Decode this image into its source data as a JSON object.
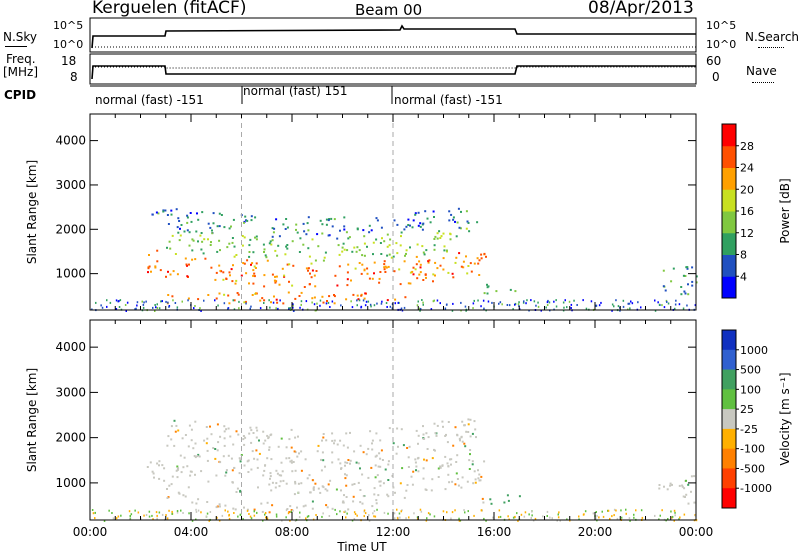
{
  "header": {
    "station": "Kerguelen (fitACF)",
    "beam": "Beam 00",
    "date": "08/Apr/2013"
  },
  "panels": {
    "nsky": {
      "label": "N.Sky",
      "ticks": [
        "10^5",
        "10^0"
      ]
    },
    "nsearch": {
      "label": "N.Search",
      "ticks": [
        "10^5",
        "10^0"
      ]
    },
    "freq": {
      "label1": "Freq.",
      "label2": "[MHz]",
      "ticks": [
        "18",
        "8"
      ]
    },
    "nave": {
      "label": "Nave",
      "ticks": [
        "60",
        "0"
      ]
    },
    "cpid": {
      "label": "CPID",
      "segments": [
        {
          "name": "normal (fast) -151",
          "start": 0,
          "end": 6
        },
        {
          "name": "normal (fast) 151",
          "start": 6,
          "end": 12
        },
        {
          "name": "normal (fast) -151",
          "start": 12,
          "end": 24
        }
      ]
    }
  },
  "chart_data": [
    {
      "type": "heatmap",
      "title": "",
      "xlabel": "Time UT",
      "ylabel": "Slant Range [km]",
      "xlim": [
        0,
        24
      ],
      "ylim": [
        180,
        4600
      ],
      "x_ticks": [
        "00:00",
        "04:00",
        "08:00",
        "12:00",
        "16:00",
        "20:00",
        "00:00"
      ],
      "y_ticks": [
        1000,
        2000,
        3000,
        4000
      ],
      "colorbar": {
        "label": "Power [dB]",
        "ticks": [
          4,
          8,
          12,
          16,
          20,
          24,
          28
        ],
        "colors": [
          "#0000ff",
          "#2050c0",
          "#30a060",
          "#80c840",
          "#c8e020",
          "#ffa000",
          "#ff5000",
          "#ff0000"
        ]
      },
      "bands": [
        {
          "t0": 2.2,
          "t1": 15.7,
          "r_lo": 700,
          "r_hi": 1300,
          "level": 24
        },
        {
          "t0": 3.0,
          "t1": 15.0,
          "r_lo": 1300,
          "r_hi": 1800,
          "level": 14
        },
        {
          "t0": 2.4,
          "t1": 15.3,
          "r_lo": 1800,
          "r_hi": 2300,
          "level": 8
        },
        {
          "t0": 3.0,
          "t1": 12.5,
          "r_lo": 350,
          "r_hi": 600,
          "level": 24
        },
        {
          "t0": 15.5,
          "t1": 17.0,
          "r_lo": 550,
          "r_hi": 800,
          "level": 12
        },
        {
          "t0": 22.5,
          "t1": 24.0,
          "r_lo": 550,
          "r_hi": 1200,
          "level": 10
        }
      ]
    },
    {
      "type": "heatmap",
      "title": "",
      "xlabel": "Time UT",
      "ylabel": "Slant Range [km]",
      "xlim": [
        0,
        24
      ],
      "ylim": [
        180,
        4600
      ],
      "x_ticks": [
        "00:00",
        "04:00",
        "08:00",
        "12:00",
        "16:00",
        "20:00",
        "00:00"
      ],
      "y_ticks": [
        1000,
        2000,
        3000,
        4000
      ],
      "colorbar": {
        "label": "Velocity [m s⁻¹]",
        "ticks": [
          1000,
          500,
          100,
          25,
          -25,
          -100,
          -500,
          -1000
        ],
        "colors": [
          "#1030c0",
          "#3060d0",
          "#40a060",
          "#60c040",
          "#c8c8c0",
          "#ffb000",
          "#ff8000",
          "#ff4000",
          "#ff0000"
        ]
      },
      "bands": [
        {
          "t0": 2.2,
          "t1": 15.7,
          "r_lo": 700,
          "r_hi": 1300,
          "level": 0
        },
        {
          "t0": 3.0,
          "t1": 15.3,
          "r_lo": 1300,
          "r_hi": 2200,
          "level": 0
        },
        {
          "t0": 3.0,
          "t1": 12.5,
          "r_lo": 350,
          "r_hi": 600,
          "level": 0
        },
        {
          "t0": 15.5,
          "t1": 17.0,
          "r_lo": 550,
          "r_hi": 800,
          "level": 100
        },
        {
          "t0": 22.5,
          "t1": 24.0,
          "r_lo": 550,
          "r_hi": 1200,
          "level": 0
        }
      ]
    }
  ]
}
